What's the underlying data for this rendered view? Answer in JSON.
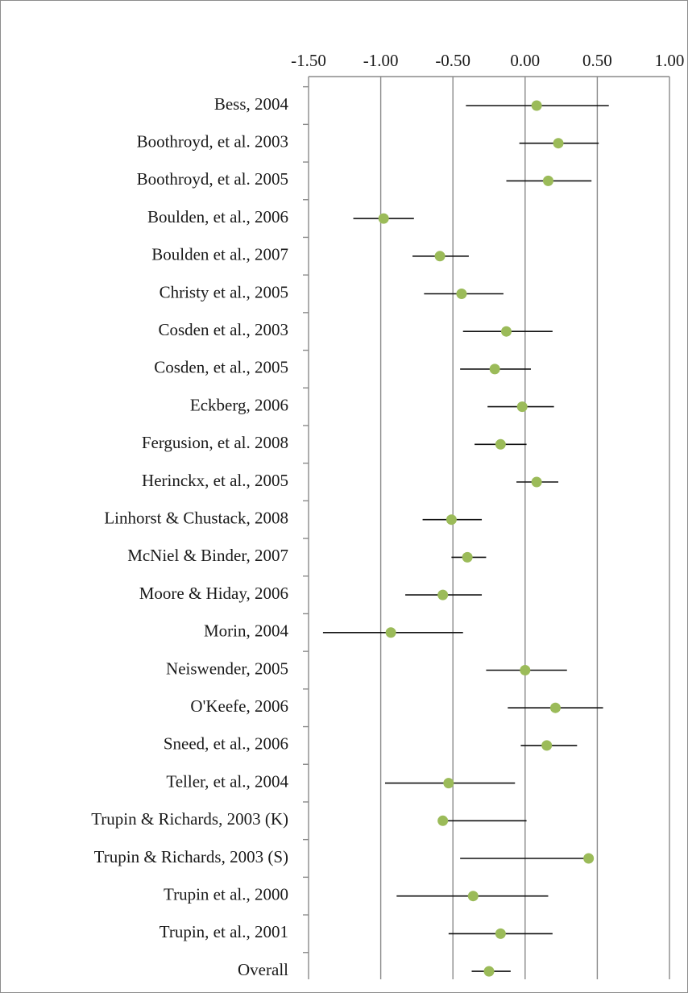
{
  "chart_data": {
    "type": "scatter",
    "subtype": "forest-plot",
    "title": "",
    "xlabel": "",
    "ylabel": "",
    "xlim": [
      -1.5,
      1.0
    ],
    "x_ticks": [
      -1.5,
      -1.0,
      -0.5,
      0.0,
      0.5,
      1.0
    ],
    "x_tick_labels": [
      "-1.50",
      "-1.00",
      "-0.50",
      "0.00",
      "0.50",
      "1.00"
    ],
    "x_axis_position": "top",
    "grid": true,
    "legend": "none",
    "point_color": "#9bbb59",
    "ci_color": "#000000",
    "studies": [
      {
        "label": "Bess, 2004",
        "estimate": 0.08,
        "lower": -0.41,
        "upper": 0.58
      },
      {
        "label": "Boothroyd, et al. 2003",
        "estimate": 0.23,
        "lower": -0.04,
        "upper": 0.51
      },
      {
        "label": "Boothroyd, et al. 2005",
        "estimate": 0.16,
        "lower": -0.13,
        "upper": 0.46
      },
      {
        "label": "Boulden, et al., 2006",
        "estimate": -0.98,
        "lower": -1.19,
        "upper": -0.77
      },
      {
        "label": "Boulden et al., 2007",
        "estimate": -0.59,
        "lower": -0.78,
        "upper": -0.39
      },
      {
        "label": "Christy et al., 2005",
        "estimate": -0.44,
        "lower": -0.7,
        "upper": -0.15
      },
      {
        "label": "Cosden et al., 2003",
        "estimate": -0.13,
        "lower": -0.43,
        "upper": 0.19
      },
      {
        "label": "Cosden, et al., 2005",
        "estimate": -0.21,
        "lower": -0.45,
        "upper": 0.04
      },
      {
        "label": "Eckberg, 2006",
        "estimate": -0.02,
        "lower": -0.26,
        "upper": 0.2
      },
      {
        "label": "Fergusion, et al. 2008",
        "estimate": -0.17,
        "lower": -0.35,
        "upper": 0.01
      },
      {
        "label": "Herinckx, et al., 2005",
        "estimate": 0.08,
        "lower": -0.06,
        "upper": 0.23
      },
      {
        "label": "Linhorst & Chustack, 2008",
        "estimate": -0.51,
        "lower": -0.71,
        "upper": -0.3
      },
      {
        "label": "McNiel & Binder, 2007",
        "estimate": -0.4,
        "lower": -0.51,
        "upper": -0.27
      },
      {
        "label": "Moore & Hiday, 2006",
        "estimate": -0.57,
        "lower": -0.83,
        "upper": -0.3
      },
      {
        "label": "Morin, 2004",
        "estimate": -0.93,
        "lower": -1.4,
        "upper": -0.43
      },
      {
        "label": "Neiswender, 2005",
        "estimate": 0.0,
        "lower": -0.27,
        "upper": 0.29
      },
      {
        "label": "O'Keefe, 2006",
        "estimate": 0.21,
        "lower": -0.12,
        "upper": 0.54
      },
      {
        "label": "Sneed, et al., 2006",
        "estimate": 0.15,
        "lower": -0.03,
        "upper": 0.36
      },
      {
        "label": "Teller, et al., 2004",
        "estimate": -0.53,
        "lower": -0.97,
        "upper": -0.07
      },
      {
        "label": "Trupin & Richards, 2003 (K)",
        "estimate": -0.57,
        "lower": -0.57,
        "upper": 0.01
      },
      {
        "label": "Trupin & Richards, 2003 (S)",
        "estimate": 0.44,
        "lower": -0.45,
        "upper": 0.44
      },
      {
        "label": "Trupin et al., 2000",
        "estimate": -0.36,
        "lower": -0.89,
        "upper": 0.16
      },
      {
        "label": "Trupin, et al., 2001",
        "estimate": -0.17,
        "lower": -0.53,
        "upper": 0.19
      },
      {
        "label": "Overall",
        "estimate": -0.25,
        "lower": -0.37,
        "upper": -0.1
      }
    ]
  }
}
